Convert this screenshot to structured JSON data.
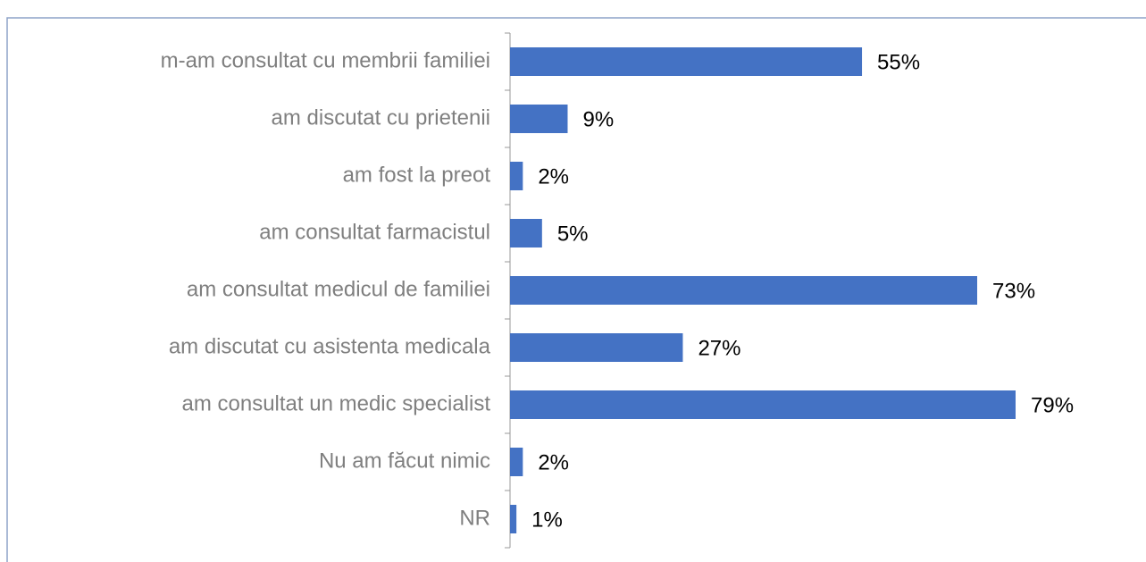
{
  "chart_data": {
    "type": "bar",
    "orientation": "horizontal",
    "categories": [
      "m-am consultat cu membrii familiei",
      "am discutat cu prietenii",
      "am fost la preot",
      "am consultat farmacistul",
      "am consultat medicul de familiei",
      "am discutat cu asistenta medicala",
      "am consultat un medic specialist",
      "Nu am făcut nimic",
      "NR"
    ],
    "values": [
      55,
      9,
      2,
      5,
      73,
      27,
      79,
      2,
      1
    ],
    "value_labels": [
      "55%",
      "9%",
      "2%",
      "5%",
      "73%",
      "27%",
      "79%",
      "2%",
      "1%"
    ],
    "color": "#4472c4"
  }
}
